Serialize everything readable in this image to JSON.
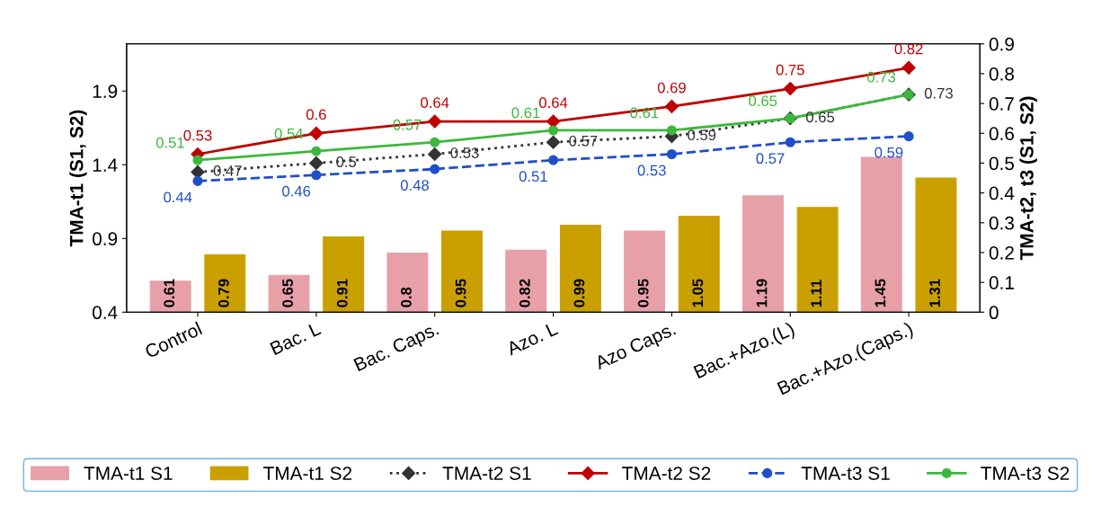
{
  "chart_data": {
    "type": "bar",
    "ylabel": "TMA-t1 (S1, S2)",
    "y2label": "TMA-t2, t3 (S1, S2)",
    "categories": [
      "Control",
      "Bac. L",
      "Bac. Caps.",
      "Azo. L",
      "Azo Caps.",
      "Bac.+Azo.(L)",
      "Bac.+Azo.(Caps.)"
    ],
    "series": [
      {
        "name": "TMA-t1 S1",
        "color": "#e8a0a8",
        "values": [
          0.61,
          0.65,
          0.8,
          0.82,
          0.95,
          1.19,
          1.45
        ]
      },
      {
        "name": "TMA-t1 S2",
        "color": "#c9a000",
        "values": [
          0.79,
          0.91,
          0.95,
          0.99,
          1.05,
          1.11,
          1.31
        ]
      },
      {
        "name": "TMA-t2 S1",
        "type": "line",
        "axis": "y2",
        "color": "#333333",
        "line_style": "dotted",
        "marker": "diamond",
        "values": [
          0.47,
          0.5,
          0.53,
          0.57,
          0.59,
          0.65,
          0.73
        ]
      },
      {
        "name": "TMA-t2 S2",
        "type": "line",
        "axis": "y2",
        "color": "#c00000",
        "line_style": "solid",
        "marker": "diamond",
        "values": [
          0.53,
          0.6,
          0.64,
          0.64,
          0.69,
          0.75,
          0.82
        ]
      },
      {
        "name": "TMA-t3 S1",
        "type": "line",
        "axis": "y2",
        "color": "#1f4fc8",
        "line_style": "dashed",
        "marker": "circle",
        "values": [
          0.44,
          0.46,
          0.48,
          0.51,
          0.53,
          0.57,
          0.59
        ]
      },
      {
        "name": "TMA-t3 S2",
        "type": "line",
        "axis": "y2",
        "color": "#3cb83c",
        "line_style": "solid",
        "marker": "circle",
        "values": [
          0.51,
          0.54,
          0.57,
          0.61,
          0.61,
          0.65,
          0.73
        ]
      }
    ],
    "ylim": [
      0.4,
      2.22
    ],
    "yticks": [
      0.4,
      0.9,
      1.4,
      1.9
    ],
    "y2lim": [
      0,
      0.9
    ],
    "y2ticks": [
      0,
      0.1,
      0.2,
      0.3,
      0.4,
      0.5,
      0.6,
      0.7,
      0.8,
      0.9
    ],
    "data_labels": true,
    "legend": "bottom",
    "grid": false
  }
}
